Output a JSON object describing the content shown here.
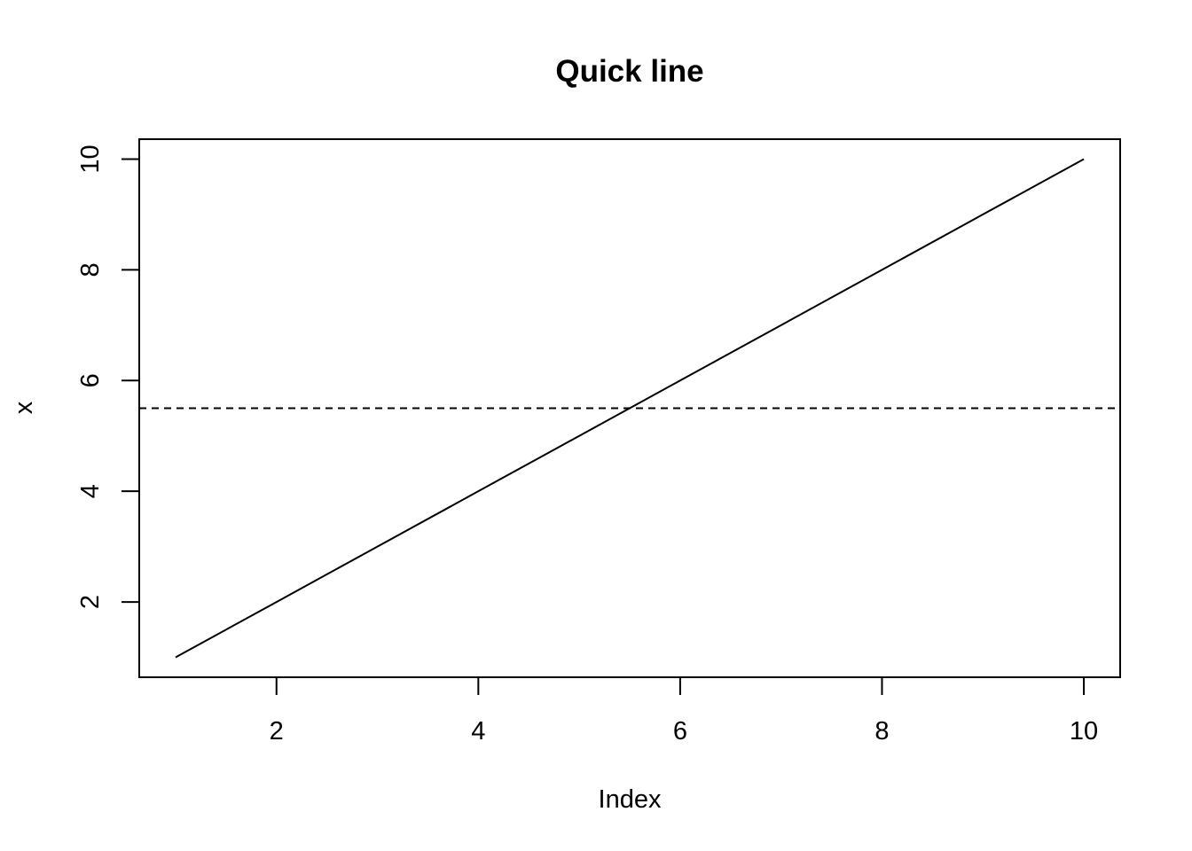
{
  "chart_data": {
    "type": "line",
    "title": "Quick line",
    "xlabel": "Index",
    "ylabel": "x",
    "x": [
      1,
      2,
      3,
      4,
      5,
      6,
      7,
      8,
      9,
      10
    ],
    "series": [
      {
        "values": [
          1,
          2,
          3,
          4,
          5,
          6,
          7,
          8,
          9,
          10
        ],
        "color": "#000000",
        "line_style": "solid"
      }
    ],
    "reference_lines": [
      {
        "orientation": "horizontal",
        "y": 5.5,
        "line_style": "dashed",
        "color": "#000000"
      }
    ],
    "xlim": [
      0.64,
      10.36
    ],
    "ylim": [
      0.64,
      10.36
    ],
    "x_ticks": [
      2,
      4,
      6,
      8,
      10
    ],
    "y_ticks": [
      2,
      4,
      6,
      8,
      10
    ],
    "x_tick_labels": [
      "2",
      "4",
      "6",
      "8",
      "10"
    ],
    "y_tick_labels": [
      "2",
      "4",
      "6",
      "8",
      "10"
    ],
    "grid": false,
    "legend": "none",
    "box": true
  }
}
